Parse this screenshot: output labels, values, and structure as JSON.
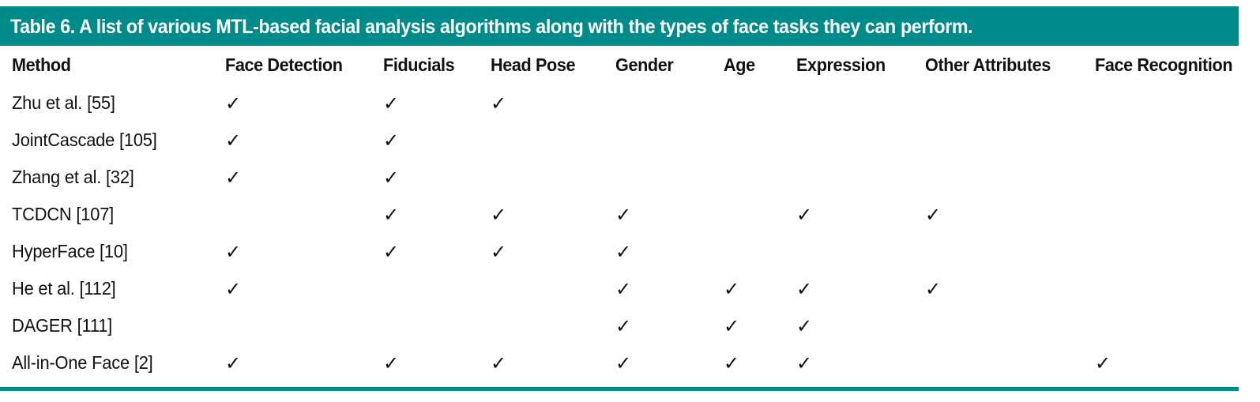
{
  "caption": "Table 6. A list of various MTL-based facial analysis algorithms along with the types of face tasks they can perform.",
  "check_mark": "✓",
  "colors": {
    "accent_teal": "#008b8b",
    "caption_text": "#ffffff",
    "body_text": "#111111"
  },
  "columns": [
    "Method",
    "Face Detection",
    "Fiducials",
    "Head Pose",
    "Gender",
    "Age",
    "Expression",
    "Other Attributes",
    "Face Recognition"
  ],
  "rows": [
    {
      "method": "Zhu et al. [55]",
      "checks": [
        true,
        true,
        true,
        false,
        false,
        false,
        false,
        false
      ]
    },
    {
      "method": "JointCascade [105]",
      "checks": [
        true,
        true,
        false,
        false,
        false,
        false,
        false,
        false
      ]
    },
    {
      "method": "Zhang et al. [32]",
      "checks": [
        true,
        true,
        false,
        false,
        false,
        false,
        false,
        false
      ]
    },
    {
      "method": "TCDCN [107]",
      "checks": [
        false,
        true,
        true,
        true,
        false,
        true,
        true,
        false
      ]
    },
    {
      "method": "HyperFace [10]",
      "checks": [
        true,
        true,
        true,
        true,
        false,
        false,
        false,
        false
      ]
    },
    {
      "method": "He et al. [112]",
      "checks": [
        true,
        false,
        false,
        true,
        true,
        true,
        true,
        false
      ]
    },
    {
      "method": "DAGER [111]",
      "checks": [
        false,
        false,
        false,
        true,
        true,
        true,
        false,
        false
      ]
    },
    {
      "method": "All-in-One Face [2]",
      "checks": [
        true,
        true,
        true,
        true,
        true,
        true,
        false,
        true
      ]
    }
  ]
}
